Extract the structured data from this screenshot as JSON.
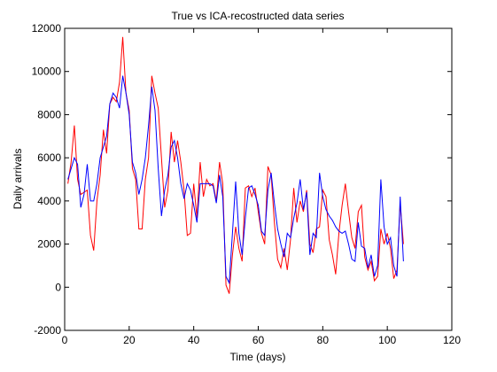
{
  "chart_data": {
    "type": "line",
    "title": "True vs ICA-recostructed data series",
    "xlabel": "Time (days)",
    "ylabel": "Daily arrivals",
    "x": [
      1,
      2,
      3,
      4,
      5,
      6,
      7,
      8,
      9,
      10,
      11,
      12,
      13,
      14,
      15,
      16,
      17,
      18,
      19,
      20,
      21,
      22,
      23,
      24,
      25,
      26,
      27,
      28,
      29,
      30,
      31,
      32,
      33,
      34,
      35,
      36,
      37,
      38,
      39,
      40,
      41,
      42,
      43,
      44,
      45,
      46,
      47,
      48,
      49,
      50,
      51,
      52,
      53,
      54,
      55,
      56,
      57,
      58,
      59,
      60,
      61,
      62,
      63,
      64,
      65,
      66,
      67,
      68,
      69,
      70,
      71,
      72,
      73,
      74,
      75,
      76,
      77,
      78,
      79,
      80,
      81,
      82,
      83,
      84,
      85,
      86,
      87,
      88,
      89,
      90,
      91,
      92,
      93,
      94,
      95,
      96,
      97,
      98,
      99,
      100,
      101,
      102,
      103,
      104,
      105
    ],
    "series": [
      {
        "color": "#ff0000",
        "values": [
          4800,
          5800,
          7500,
          5000,
          4300,
          4400,
          4500,
          2400,
          1700,
          4000,
          5200,
          7300,
          6200,
          8500,
          8800,
          8600,
          9500,
          11600,
          9000,
          8200,
          5500,
          5000,
          2700,
          2700,
          5000,
          6000,
          9800,
          9000,
          8300,
          6000,
          3700,
          4500,
          7200,
          5800,
          6800,
          5800,
          4500,
          2400,
          2500,
          4800,
          3200,
          5800,
          4200,
          5000,
          4700,
          4800,
          4000,
          5800,
          4800,
          100,
          -300,
          1500,
          2800,
          1800,
          1200,
          4600,
          4700,
          4200,
          4600,
          3500,
          2500,
          2000,
          5600,
          5200,
          3000,
          1300,
          900,
          1800,
          800,
          2200,
          4600,
          3000,
          4000,
          3500,
          4500,
          2000,
          1600,
          2700,
          2800,
          4500,
          4200,
          2200,
          1500,
          600,
          2500,
          3800,
          4800,
          3500,
          2300,
          1800,
          3500,
          3800,
          1400,
          800,
          1200,
          300,
          500,
          2700,
          2000,
          2500,
          1800,
          400,
          800,
          3900,
          2000
        ]
      },
      {
        "color": "#0000ff",
        "values": [
          5000,
          5500,
          6000,
          5700,
          3700,
          4300,
          5700,
          4000,
          4000,
          4800,
          6000,
          6500,
          7000,
          8500,
          9000,
          8800,
          8300,
          9800,
          9000,
          8000,
          5800,
          5300,
          4300,
          5000,
          6000,
          7500,
          9300,
          8200,
          5500,
          3300,
          4500,
          5200,
          6500,
          6800,
          6000,
          4800,
          4100,
          4800,
          4500,
          3800,
          3000,
          4800,
          4800,
          4800,
          4800,
          4700,
          3900,
          5200,
          4200,
          500,
          200,
          2500,
          4900,
          2500,
          1500,
          3200,
          4600,
          4700,
          4300,
          3800,
          2600,
          2400,
          4500,
          5300,
          3900,
          2700,
          2000,
          1400,
          2500,
          2300,
          3200,
          3900,
          5000,
          3600,
          4400,
          1500,
          2500,
          2300,
          5300,
          4200,
          3600,
          3300,
          3100,
          2800,
          2600,
          2500,
          2600,
          2000,
          1300,
          1200,
          3000,
          1900,
          1800,
          900,
          1500,
          500,
          1000,
          5000,
          2800,
          2000,
          2300,
          1000,
          500,
          4200,
          1200
        ]
      }
    ],
    "xlim": [
      0,
      120
    ],
    "xticks": [
      0,
      20,
      40,
      60,
      80,
      100,
      120
    ],
    "ylim": [
      -2000,
      12000
    ],
    "yticks": [
      -2000,
      0,
      2000,
      4000,
      6000,
      8000,
      10000,
      12000
    ],
    "grid": false
  }
}
